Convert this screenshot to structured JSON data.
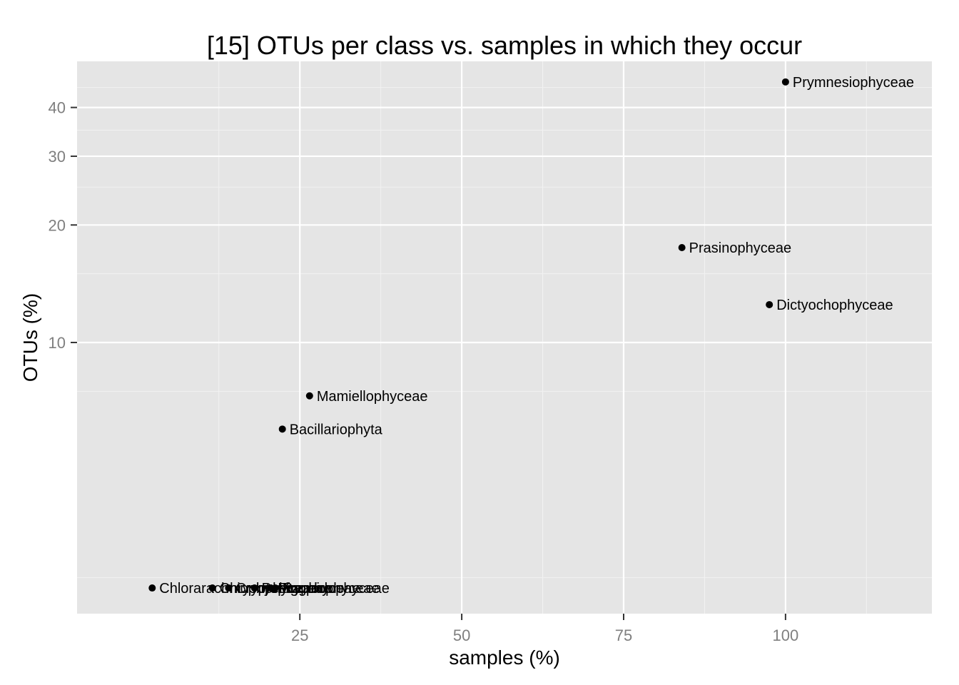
{
  "chart_data": {
    "type": "scatter",
    "title": "[15] OTUs per class vs. samples in which they occur",
    "xlabel": "samples (%)",
    "ylabel": "OTUs (%)",
    "x_scale": "linear",
    "y_scale": "log10",
    "xlim": [
      -9.4,
      122.6
    ],
    "ylim": [
      2.02,
      52.5
    ],
    "x_ticks": [
      25,
      50,
      75,
      100
    ],
    "x_tick_labels": [
      "25",
      "50",
      "75",
      "100"
    ],
    "x_minor_ticks": [
      12.5,
      37.5,
      62.5,
      87.5,
      112.5
    ],
    "y_ticks": [
      10,
      20,
      30,
      40
    ],
    "y_tick_labels": [
      "10",
      "20",
      "30",
      "40"
    ],
    "y_minor_ticks": [
      2.5,
      7.5,
      15,
      25,
      35,
      45
    ],
    "grid": true,
    "colors": {
      "panel_background": "#e5e5e5",
      "grid_major": "#ffffff",
      "grid_minor": "#f2f2f2",
      "point": "#000000",
      "tick_label": "#7f7f7f",
      "text": "#000000"
    },
    "points": [
      {
        "label": "Prymnesiophyceae",
        "x": 100.0,
        "y": 46.5
      },
      {
        "label": "Prasinophyceae",
        "x": 84.0,
        "y": 17.5
      },
      {
        "label": "Dictyochophyceae",
        "x": 97.5,
        "y": 12.5
      },
      {
        "label": "Mamiellophyceae",
        "x": 26.5,
        "y": 7.3
      },
      {
        "label": "Bacillariophyta",
        "x": 22.3,
        "y": 6.0
      },
      {
        "label": "Chlorarachniophyceae",
        "x": 2.2,
        "y": 2.35
      },
      {
        "label": "Chrysophyceae",
        "x": 11.5,
        "y": 2.35
      },
      {
        "label": "Cryptophyceae",
        "x": 14.0,
        "y": 2.35
      },
      {
        "label": "Pelagophyceae",
        "x": 18.0,
        "y": 2.35
      },
      {
        "label": "Pinguiophyceae",
        "x": 20.5,
        "y": 2.35
      },
      {
        "label": "Raphidophyceae",
        "x": 21.2,
        "y": 2.35
      }
    ]
  }
}
